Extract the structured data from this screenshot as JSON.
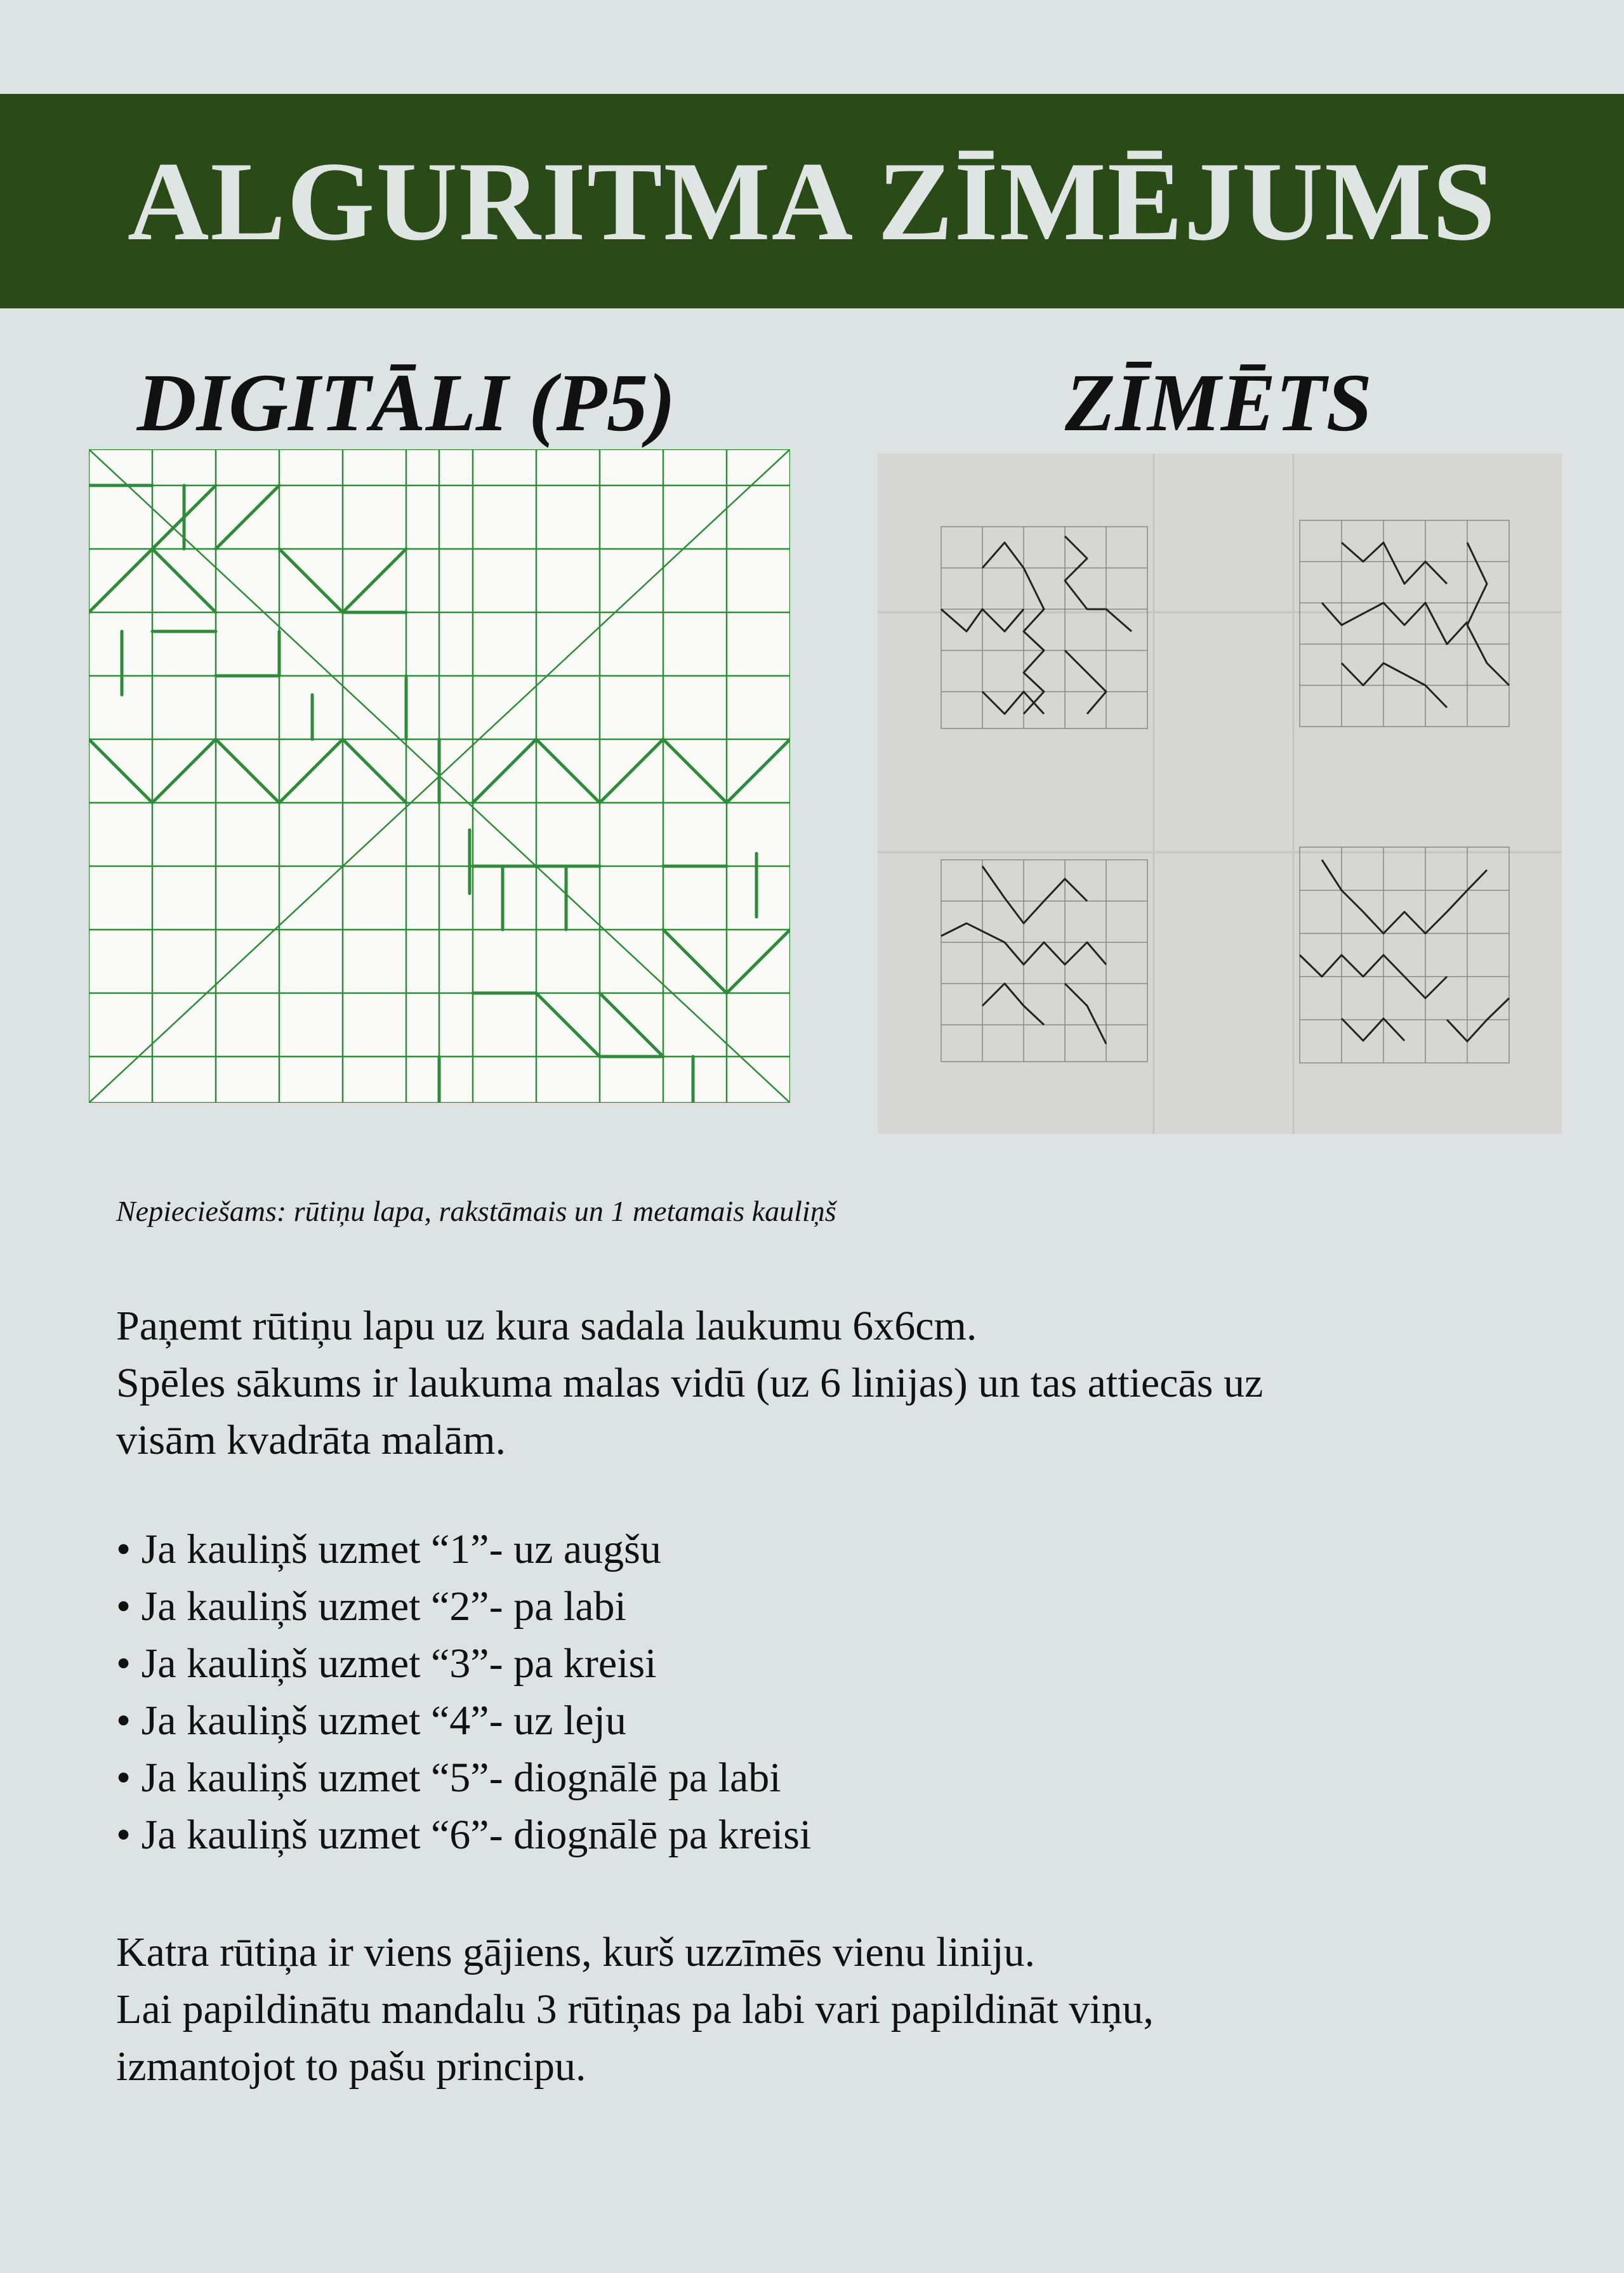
{
  "header": {
    "title": "ALGURITMA ZĪMĒJUMS",
    "bg": "#2a4a17",
    "fg": "#dfe5e3"
  },
  "left_panel": {
    "heading": "DIGITĀLI (P5)",
    "grid_color": "#2e8b3a"
  },
  "right_panel": {
    "heading": "ZĪMĒTS"
  },
  "requirements": "Nepieciešams: rūtiņu lapa, rakstāmais un 1 metamais kauliņš",
  "intro": [
    "Paņemt  rūtiņu lapu uz kura sadala laukumu 6x6cm.",
    "Spēles sākums ir laukuma malas vidū (uz 6 linijas) un tas attiecās uz",
    "visām kvadrāta malām."
  ],
  "rules": [
    "Ja kauliņš uzmet “1”- uz augšu",
    "Ja kauliņš uzmet “2”- pa labi",
    "Ja kauliņš uzmet “3”- pa kreisi",
    "Ja kauliņš uzmet “4”- uz leju",
    "Ja kauliņš uzmet “5”- diognālē pa labi",
    "Ja kauliņš uzmet “6”- diognālē pa kreisi"
  ],
  "outro": [
    "Katra rūtiņa ir viens gājiens, kurš uzzīmēs vienu liniju.",
    "Lai papildinātu mandalu 3 rūtiņas pa labi vari papildināt viņu,",
    "izmantojot to pašu principu."
  ],
  "colors": {
    "background": "#dde3e2",
    "text": "#111111",
    "pen": "#222222"
  }
}
